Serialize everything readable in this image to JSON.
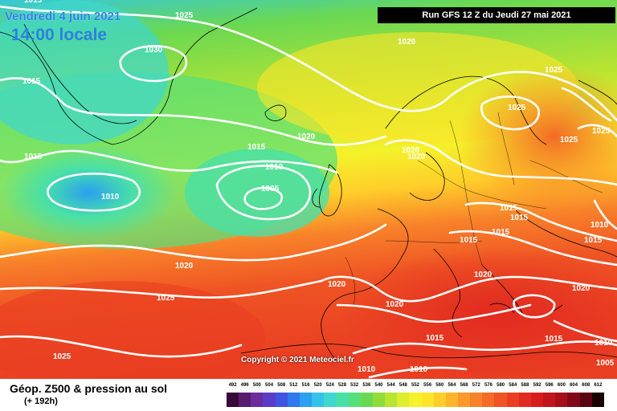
{
  "header": {
    "date": "Vendredi 4 juin 2021",
    "time": "14:00 locale",
    "run": "Run GFS 12 Z du Jeudi 27 mai 2021"
  },
  "footer": {
    "title": "Géop. Z500 & pression au sol",
    "subtitle": "(+ 192h)"
  },
  "copyright": "Copyright © 2021 Meteociel.fr",
  "scale": {
    "labels": [
      "492",
      "496",
      "500",
      "504",
      "508",
      "512",
      "516",
      "520",
      "524",
      "528",
      "532",
      "536",
      "540",
      "544",
      "548",
      "552",
      "556",
      "560",
      "564",
      "568",
      "572",
      "576",
      "580",
      "584",
      "588",
      "592",
      "596",
      "600",
      "604",
      "608",
      "612"
    ],
    "colors": [
      "#3a0838",
      "#5a1a6e",
      "#6d2a9b",
      "#5b3cc5",
      "#3d55e0",
      "#2f78ee",
      "#2aa0f0",
      "#33c3e8",
      "#3fd7d0",
      "#48e0a8",
      "#55e07a",
      "#6ad852",
      "#8fdc3a",
      "#b8e432",
      "#dcee2e",
      "#f4f22a",
      "#fde62a",
      "#fece2a",
      "#fdb42a",
      "#fb9a2a",
      "#f8822a",
      "#f46a26",
      "#ef5424",
      "#e93e22",
      "#e12a20",
      "#d61c1e",
      "#c2141c",
      "#a60e1a",
      "#820a18",
      "#5a0612",
      "#1a0204"
    ]
  },
  "isobars": [
    "1025",
    "1030",
    "1015",
    "1015",
    "1010",
    "1010",
    "1005",
    "1015",
    "1020",
    "1020",
    "1020",
    "1025",
    "1025",
    "1025",
    "1025",
    "1010",
    "1015",
    "1015",
    "1015",
    "1015",
    "1015",
    "1020",
    "1020",
    "1020",
    "1020",
    "1020",
    "1020",
    "1025",
    "1010",
    "1015",
    "1015",
    "1010",
    "1010",
    "1005",
    "1025",
    "1015"
  ],
  "legend_colors": {
    "isobar": "#ffffff",
    "borders": "#000000"
  }
}
